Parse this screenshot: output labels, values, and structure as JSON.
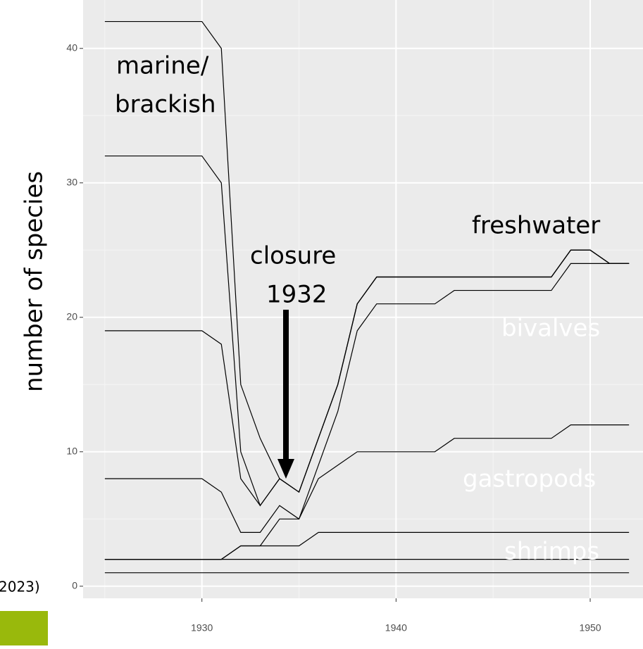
{
  "chart_data": {
    "type": "line",
    "y_label": "number of species",
    "side_text": "2023)",
    "annotations": [
      "marine/",
      "brackish",
      "closure",
      "1932",
      "freshwater",
      "bivalves",
      "gastropods",
      "shrimps"
    ],
    "x": [
      1925,
      1926,
      1927,
      1928,
      1929,
      1930,
      1931,
      1932,
      1933,
      1934,
      1935,
      1936,
      1937,
      1938,
      1939,
      1940,
      1941,
      1942,
      1943,
      1944,
      1945,
      1946,
      1947,
      1948,
      1949,
      1950,
      1951,
      1952
    ],
    "series": [
      {
        "color": "#000000",
        "values": [
          42,
          42,
          42,
          42,
          42,
          42,
          40,
          15,
          11,
          8,
          7,
          11,
          15,
          21,
          23,
          23,
          23,
          23,
          23,
          23,
          23,
          23,
          23,
          23,
          25,
          25,
          24,
          24
        ]
      },
      {
        "color": "#000000",
        "values": [
          32,
          32,
          32,
          32,
          32,
          32,
          30,
          10,
          6,
          8,
          7,
          11,
          15,
          21,
          23,
          23,
          23,
          23,
          23,
          23,
          23,
          23,
          23,
          23,
          25,
          25,
          24,
          24
        ]
      },
      {
        "color": "#000000",
        "values": [
          19,
          19,
          19,
          19,
          19,
          19,
          18,
          8,
          6,
          8,
          7,
          11,
          15,
          21,
          23,
          23,
          23,
          23,
          23,
          23,
          23,
          23,
          23,
          23,
          25,
          25,
          24,
          24
        ]
      },
      {
        "color": "#000000",
        "values": [
          2,
          2,
          2,
          2,
          2,
          2,
          2,
          3,
          3,
          5,
          5,
          9,
          13,
          19,
          21,
          21,
          21,
          21,
          22,
          22,
          22,
          22,
          22,
          22,
          24,
          24,
          24,
          24
        ]
      },
      {
        "color": "#000000",
        "values": [
          8,
          8,
          8,
          8,
          8,
          8,
          7,
          4,
          4,
          6,
          5,
          8,
          9,
          10,
          10,
          10,
          10,
          10,
          11,
          11,
          11,
          11,
          11,
          11,
          12,
          12,
          12,
          12
        ]
      },
      {
        "color": "#000000",
        "values": [
          2,
          2,
          2,
          2,
          2,
          2,
          2,
          3,
          3,
          3,
          3,
          4,
          4,
          4,
          4,
          4,
          4,
          4,
          4,
          4,
          4,
          4,
          4,
          4,
          4,
          4,
          4,
          4
        ]
      },
      {
        "color": "#000000",
        "values": [
          2,
          2,
          2,
          2,
          2,
          2,
          2,
          2,
          2,
          2,
          2,
          2,
          2,
          2,
          2,
          2,
          2,
          2,
          2,
          2,
          2,
          2,
          2,
          2,
          2,
          2,
          2,
          2
        ]
      },
      {
        "color": "#000000",
        "values": [
          1,
          1,
          1,
          1,
          1,
          1,
          1,
          1,
          1,
          1,
          1,
          1,
          1,
          1,
          1,
          1,
          1,
          1,
          1,
          1,
          1,
          1,
          1,
          1,
          1,
          1,
          1,
          1
        ]
      }
    ],
    "xlim": [
      1923.88,
      1952.72
    ],
    "ylim": [
      -0.9,
      43.6
    ],
    "xticks": [
      1930,
      1940,
      1950
    ],
    "yticks": [
      0,
      10,
      20,
      30,
      40
    ],
    "grid": true
  }
}
